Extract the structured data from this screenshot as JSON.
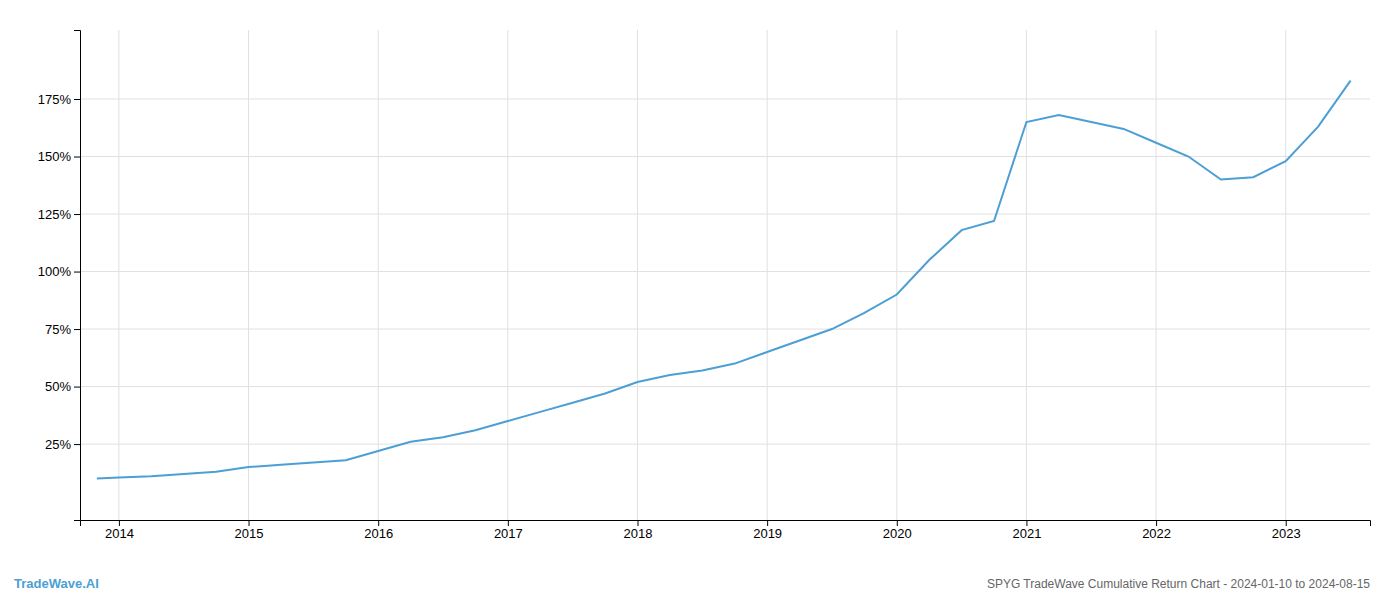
{
  "chart_data": {
    "type": "line",
    "title": "SPYG TradeWave Cumulative Return Chart - 2024-01-10 to 2024-08-15",
    "annotations": [
      "TradeWave.AI"
    ],
    "x": [
      2013.83,
      2014.0,
      2014.25,
      2014.5,
      2014.75,
      2015.0,
      2015.25,
      2015.5,
      2015.75,
      2016.0,
      2016.25,
      2016.5,
      2016.75,
      2017.0,
      2017.25,
      2017.5,
      2017.75,
      2018.0,
      2018.25,
      2018.5,
      2018.75,
      2019.0,
      2019.25,
      2019.5,
      2019.75,
      2020.0,
      2020.25,
      2020.5,
      2020.75,
      2021.0,
      2021.25,
      2021.5,
      2021.75,
      2022.0,
      2022.25,
      2022.5,
      2022.75,
      2023.0,
      2023.25,
      2023.5
    ],
    "values": [
      10,
      10.5,
      11,
      12,
      13,
      15,
      16,
      17,
      18,
      22,
      26,
      28,
      31,
      35,
      39,
      43,
      47,
      52,
      55,
      57,
      60,
      65,
      70,
      75,
      82,
      90,
      105,
      118,
      122,
      165,
      168,
      165,
      162,
      156,
      150,
      140,
      141,
      148,
      163,
      183
    ],
    "color": "#4c9fd4",
    "xlim": [
      2013.7,
      2023.65
    ],
    "ylim": [
      -8,
      205
    ],
    "xticks": [
      2014,
      2015,
      2016,
      2017,
      2018,
      2019,
      2020,
      2021,
      2022,
      2023
    ],
    "yticks": [
      {
        "value": 25,
        "label": "25%"
      },
      {
        "value": 50,
        "label": "50%"
      },
      {
        "value": 75,
        "label": "75%"
      },
      {
        "value": 100,
        "label": "100%"
      },
      {
        "value": 125,
        "label": "125%"
      },
      {
        "value": 150,
        "label": "150%"
      },
      {
        "value": 175,
        "label": "175%"
      }
    ],
    "grid": true
  }
}
